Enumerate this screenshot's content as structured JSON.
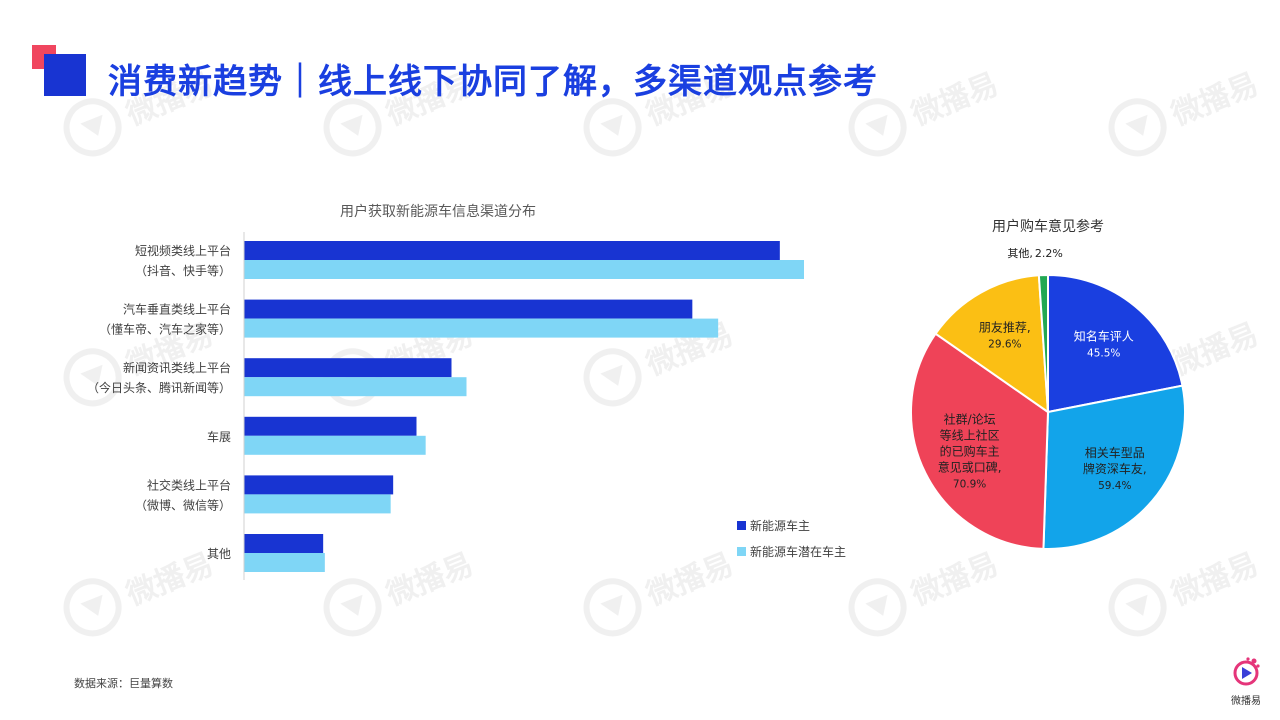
{
  "slide": {
    "title": "消费新趋势｜线上线下协同了解，多渠道观点参考",
    "source": "数据来源：巨量算数",
    "brand": "微播易",
    "watermark": "微播易"
  },
  "colors": {
    "dark_blue": "#1834d2",
    "light_blue": "#7fd6f6",
    "red": "#f0465f"
  },
  "chart_data": [
    {
      "type": "bar",
      "orientation": "horizontal",
      "title": "用户获取新能源车信息渠道分布",
      "categories": [
        [
          "短视频类线上平台",
          "（抖音、快手等）"
        ],
        [
          "汽车垂直类线上平台",
          "（懂车帝、汽车之家等）"
        ],
        [
          "新闻资讯类线上平台",
          "（今日头条、腾讯新闻等）"
        ],
        [
          "车展"
        ],
        [
          "社交类线上平台",
          "（微博、微信等）"
        ],
        [
          "其他"
        ]
      ],
      "series": [
        {
          "name": "新能源车主",
          "color": "#1834d2",
          "values": [
            64.3,
            53.8,
            24.9,
            20.7,
            17.9,
            9.5
          ]
        },
        {
          "name": "新能源车潜在车主",
          "color": "#7fd6f6",
          "values": [
            67.2,
            56.9,
            26.7,
            21.8,
            17.6,
            9.7
          ]
        }
      ],
      "xlim": [
        0,
        72
      ],
      "grid": false,
      "legend": "bottom-right"
    },
    {
      "type": "pie",
      "title": "用户购车意见参考",
      "slices": [
        {
          "label": [
            "知名车评人"
          ],
          "value_label": "45.5%",
          "value": 45.5,
          "color": "#1a3fe0",
          "label_color": "#ffffff"
        },
        {
          "label": [
            "相关车型品",
            "牌资深车友,"
          ],
          "value_label": "59.4%",
          "value": 59.4,
          "color": "#12a4ea",
          "label_color": "#222222"
        },
        {
          "label": [
            "社群/论坛",
            "等线上社区",
            "的已购车主",
            "意见或口碑,"
          ],
          "value_label": "70.9%",
          "value": 70.9,
          "color": "#ef4358",
          "label_color": "#222222"
        },
        {
          "label": [
            "朋友推荐,"
          ],
          "value_label": "29.6%",
          "value": 29.6,
          "color": "#fbbf14",
          "label_color": "#222222"
        },
        {
          "label": [
            "其他,"
          ],
          "value_label": "2.2%",
          "value": 2.2,
          "color": "#22a853",
          "label_color": "#222222"
        }
      ]
    }
  ]
}
